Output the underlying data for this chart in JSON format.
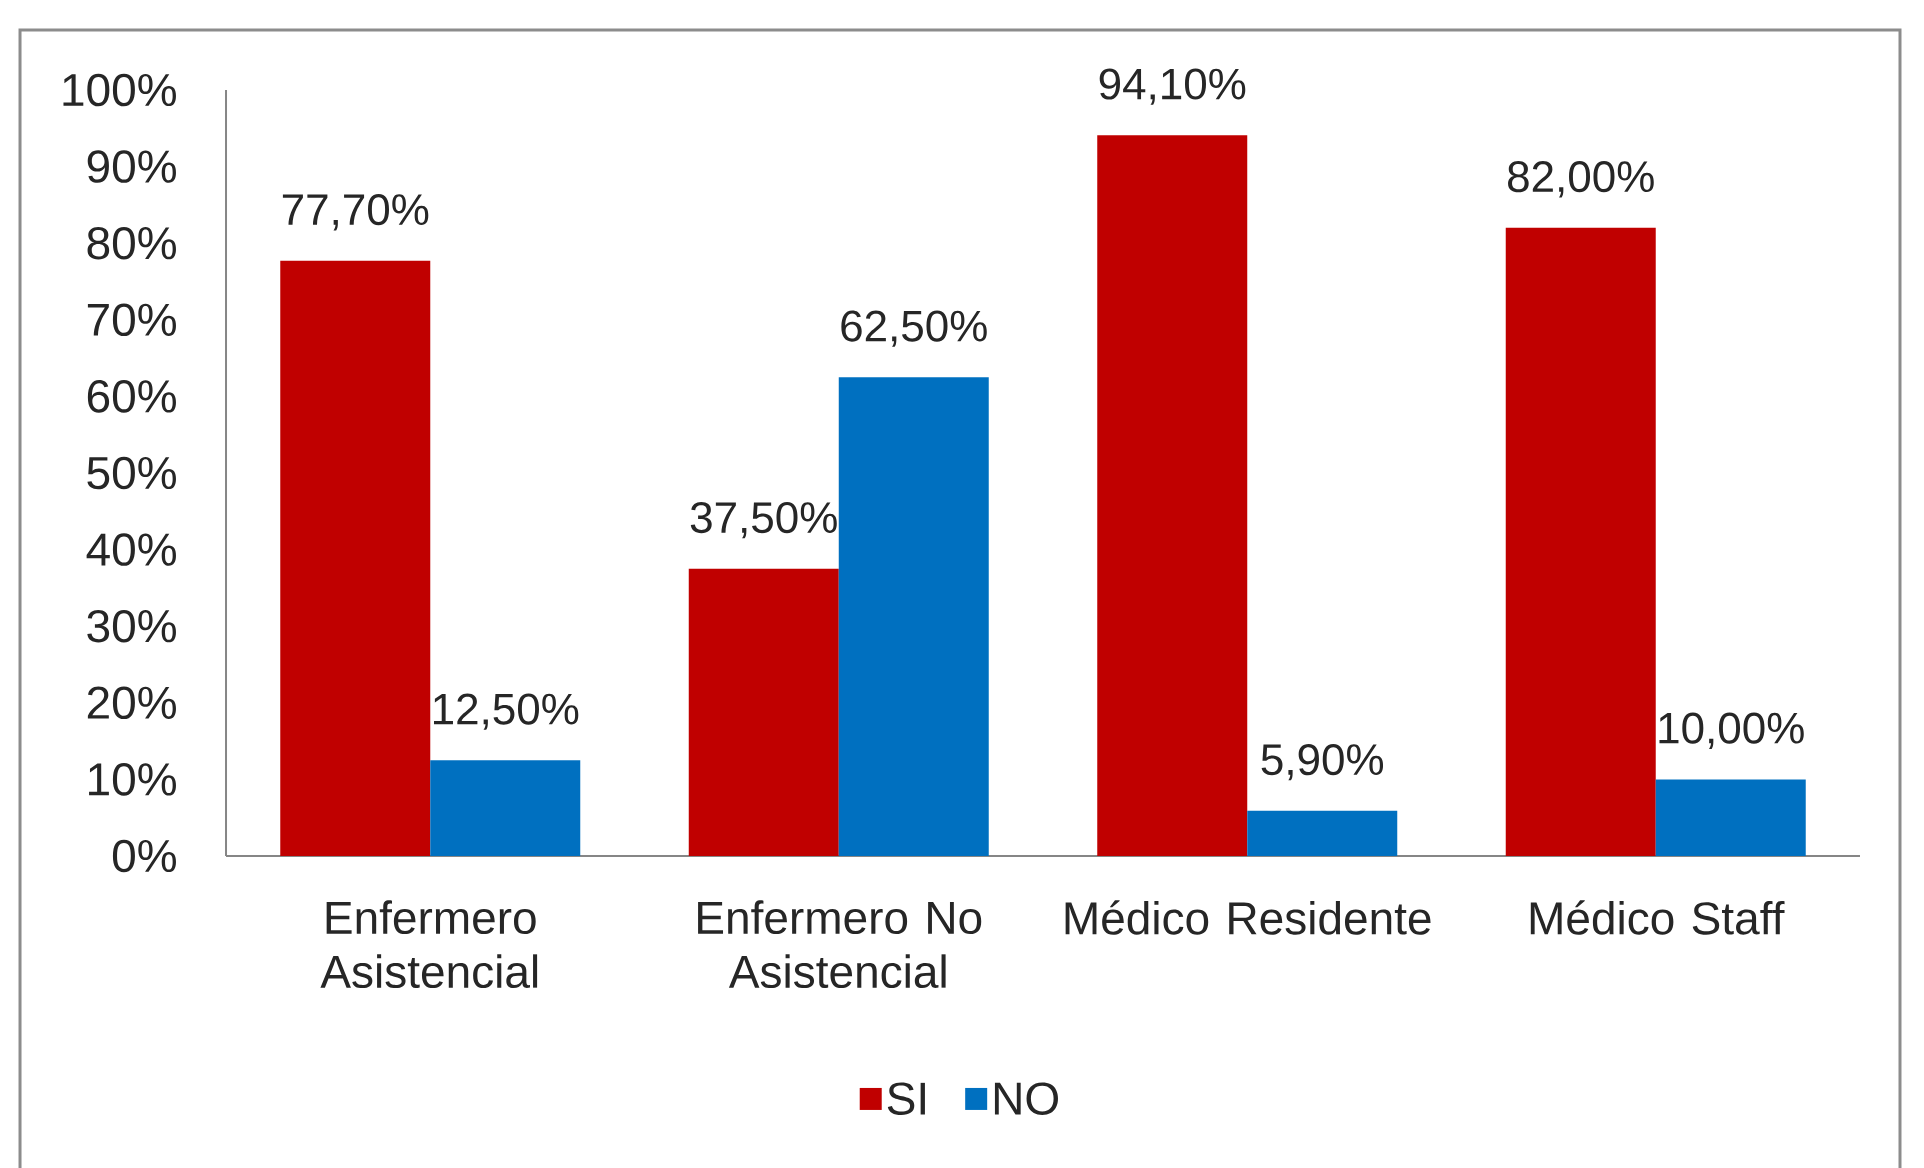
{
  "chart_data": {
    "type": "bar",
    "categories": [
      "Enfermero Asistencial",
      "Enfermero No Asistencial",
      "Médico Residente",
      "Médico Staff"
    ],
    "series": [
      {
        "name": "SI",
        "color": "#c00000",
        "values": [
          77.7,
          37.5,
          94.1,
          82.0
        ],
        "value_labels": [
          "77,70%",
          "37,50%",
          "94,10%",
          "82,00%"
        ]
      },
      {
        "name": "NO",
        "color": "#0070c0",
        "values": [
          12.5,
          62.5,
          5.9,
          10.0
        ],
        "value_labels": [
          "12,50%",
          "62,50%",
          "5,90%",
          "10,00%"
        ]
      }
    ],
    "ylim": [
      0,
      100
    ],
    "yticks": [
      {
        "value": 0,
        "label": "0%"
      },
      {
        "value": 10,
        "label": "10%"
      },
      {
        "value": 20,
        "label": "20%"
      },
      {
        "value": 30,
        "label": "30%"
      },
      {
        "value": 40,
        "label": "40%"
      },
      {
        "value": 50,
        "label": "50%"
      },
      {
        "value": 60,
        "label": "60%"
      },
      {
        "value": 70,
        "label": "70%"
      },
      {
        "value": 80,
        "label": "80%"
      },
      {
        "value": 90,
        "label": "90%"
      },
      {
        "value": 100,
        "label": "100%"
      }
    ],
    "legend": "bottom"
  }
}
